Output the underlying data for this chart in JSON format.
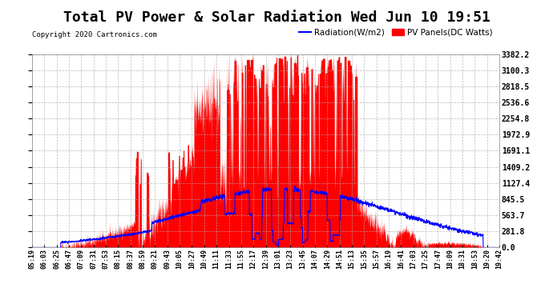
{
  "title": "Total PV Power & Solar Radiation Wed Jun 10 19:51",
  "copyright": "Copyright 2020 Cartronics.com",
  "legend_radiation": "Radiation(W/m2)",
  "legend_pv": "PV Panels(DC Watts)",
  "radiation_color": "blue",
  "pv_color": "red",
  "background_color": "#ffffff",
  "grid_color": "#aaaaaa",
  "ymax": 3382.2,
  "yticks": [
    0.0,
    281.8,
    563.7,
    845.5,
    1127.4,
    1409.2,
    1691.1,
    1972.9,
    2254.8,
    2536.6,
    2818.5,
    3100.3,
    3382.2
  ],
  "xtick_labels": [
    "05:19",
    "06:03",
    "06:25",
    "06:47",
    "07:09",
    "07:31",
    "07:53",
    "08:15",
    "08:37",
    "08:59",
    "09:21",
    "09:43",
    "10:05",
    "10:27",
    "10:49",
    "11:11",
    "11:33",
    "11:55",
    "12:17",
    "12:39",
    "13:01",
    "13:23",
    "13:45",
    "14:07",
    "14:29",
    "14:51",
    "15:13",
    "15:35",
    "15:57",
    "16:19",
    "16:41",
    "17:03",
    "17:25",
    "17:47",
    "18:09",
    "18:31",
    "18:53",
    "19:20",
    "19:42"
  ],
  "title_fontsize": 13,
  "tick_fontsize": 6.0,
  "yticklabel_fontsize": 7.0,
  "copyright_fontsize": 6.5,
  "legend_fontsize": 7.5
}
